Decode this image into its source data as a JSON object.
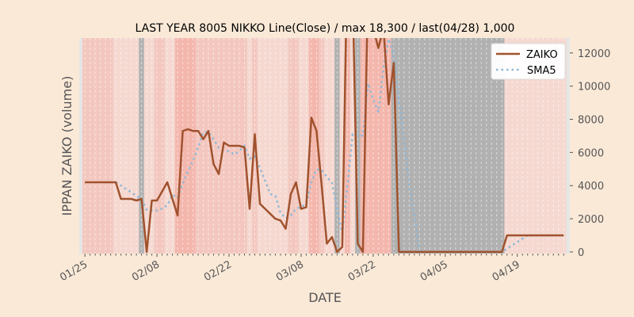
{
  "chart_data": {
    "type": "line",
    "title": "LAST YEAR 8005 NIKKO Line(Close) / max 18,300 / last(04/28) 1,000",
    "xlabel": "DATE",
    "ylabel": "IPPAN ZAIKO (volume)",
    "x_start": "01/25",
    "x_end": "04/28",
    "x_ticks": [
      {
        "day": 0,
        "label": "01/25"
      },
      {
        "day": 14,
        "label": "02/08"
      },
      {
        "day": 28,
        "label": "02/22"
      },
      {
        "day": 42,
        "label": "03/08"
      },
      {
        "day": 56,
        "label": "03/22"
      },
      {
        "day": 70,
        "label": "04/05"
      },
      {
        "day": 84,
        "label": "04/19"
      }
    ],
    "y_ticks": [
      0,
      2000,
      4000,
      6000,
      8000,
      10000,
      12000
    ],
    "y_tick_labels": [
      "0",
      "2000",
      "4000",
      "6000",
      "8000",
      "10000",
      "12000"
    ],
    "xlim": [
      -1.1,
      94.2
    ],
    "ylim": [
      -100,
      12900
    ],
    "grid": true,
    "legend_position": "top-right",
    "series": [
      {
        "name": "ZAIKO",
        "style": "solid",
        "color": "#a0522d",
        "values": [
          4200,
          4200,
          4200,
          4200,
          4200,
          4200,
          4200,
          3200,
          3200,
          3200,
          3100,
          3200,
          0,
          3100,
          3100,
          3650,
          4200,
          3200,
          2200,
          7300,
          7400,
          7300,
          7300,
          6800,
          7300,
          5300,
          4700,
          6600,
          6400,
          6400,
          6400,
          6300,
          2600,
          7100,
          2900,
          2600,
          2300,
          2000,
          1900,
          1400,
          3500,
          4200,
          2600,
          2700,
          8100,
          7300,
          4000,
          500,
          900,
          0,
          300,
          18300,
          16000,
          500,
          0,
          16000,
          13500,
          12300,
          13500,
          8900,
          11400,
          0,
          0,
          0,
          0,
          0,
          0,
          0,
          0,
          0,
          0,
          0,
          0,
          0,
          0,
          0,
          0,
          0,
          0,
          0,
          0,
          0,
          1000,
          1000,
          1000,
          1000,
          1000,
          1000,
          1000,
          1000,
          1000,
          1000,
          1000,
          1000
        ]
      },
      {
        "name": "SMA5",
        "style": "dotted",
        "color": "#8fb8d8",
        "values": [
          null,
          null,
          null,
          null,
          4200,
          4200,
          4200,
          4000,
          3800,
          3600,
          3380,
          3180,
          2540,
          2520,
          2500,
          2610,
          2810,
          3450,
          3270,
          4110,
          4860,
          5480,
          6300,
          7220,
          7220,
          6800,
          6280,
          6140,
          6060,
          5880,
          6100,
          6420,
          5620,
          5760,
          5060,
          4300,
          3500,
          3380,
          2340,
          2040,
          2220,
          2600,
          2720,
          2880,
          4220,
          4980,
          4940,
          4520,
          4160,
          2540,
          1140,
          4000,
          7100,
          7020,
          7020,
          10160,
          9200,
          8460,
          11060,
          12840,
          11920,
          9220,
          6760,
          4060,
          2280,
          0,
          0,
          0,
          0,
          0,
          0,
          0,
          0,
          0,
          0,
          0,
          0,
          0,
          0,
          0,
          0,
          0,
          200,
          400,
          600,
          800,
          1000,
          1000,
          1000,
          1000,
          1000,
          1000,
          1000,
          1000
        ]
      }
    ],
    "background_bands": [
      {
        "start": 0,
        "end": 5,
        "level": 2
      },
      {
        "start": 6,
        "end": 10,
        "level": 1
      },
      {
        "start": 11,
        "end": 11,
        "level": "gray"
      },
      {
        "start": 12,
        "end": 13,
        "level": 1
      },
      {
        "start": 14,
        "end": 15,
        "level": 2
      },
      {
        "start": 16,
        "end": 17,
        "level": 1
      },
      {
        "start": 18,
        "end": 21,
        "level": 3
      },
      {
        "start": 22,
        "end": 31,
        "level": 2
      },
      {
        "start": 32,
        "end": 32,
        "level": 1
      },
      {
        "start": 33,
        "end": 33,
        "level": 2
      },
      {
        "start": 34,
        "end": 39,
        "level": 1
      },
      {
        "start": 40,
        "end": 41,
        "level": 2
      },
      {
        "start": 42,
        "end": 43,
        "level": 1
      },
      {
        "start": 44,
        "end": 45,
        "level": 3
      },
      {
        "start": 46,
        "end": 46,
        "level": 2
      },
      {
        "start": 47,
        "end": 48,
        "level": 1
      },
      {
        "start": 49,
        "end": 49,
        "level": "gray"
      },
      {
        "start": 50,
        "end": 50,
        "level": 1
      },
      {
        "start": 51,
        "end": 51,
        "level": 3
      },
      {
        "start": 52,
        "end": 52,
        "level": 1
      },
      {
        "start": 53,
        "end": 53,
        "level": "gray"
      },
      {
        "start": 54,
        "end": 59,
        "level": 3
      },
      {
        "start": 60,
        "end": 81,
        "level": "gray"
      },
      {
        "start": 82,
        "end": 93,
        "level": 1
      }
    ],
    "band_colors": {
      "1": "#f5d8d0",
      "2": "#f3c7bf",
      "3": "#f4b7ad",
      "gray": "#b1b1b1"
    }
  }
}
